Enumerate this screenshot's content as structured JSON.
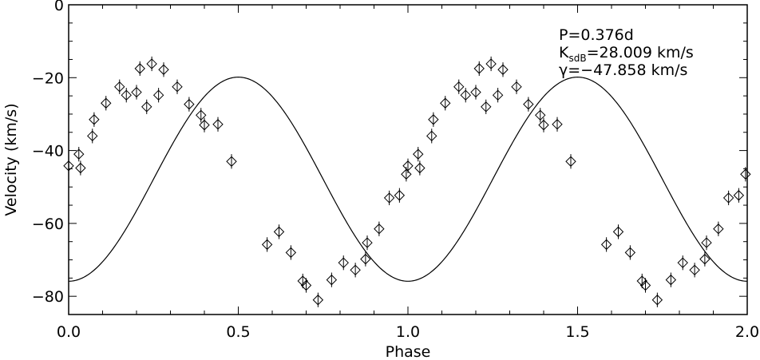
{
  "chart_data": {
    "type": "scatter",
    "xlabel": "Phase",
    "ylabel": "Velocity (km/s)",
    "xlim": [
      0.0,
      2.0
    ],
    "ylim": [
      -85,
      0
    ],
    "x_ticks": [
      0.0,
      0.5,
      1.0,
      1.5,
      2.0
    ],
    "x_tick_labels": [
      "0.0",
      "0.5",
      "1.0",
      "1.5",
      "2.0"
    ],
    "y_ticks": [
      0,
      -20,
      -40,
      -60,
      -80
    ],
    "y_tick_labels": [
      "0",
      "−20",
      "−40",
      "−60",
      "−80"
    ],
    "annotations": {
      "period": "P=0.376d",
      "k_main": "K",
      "k_sub": "sdB",
      "k_rest": "=28.009 km/s",
      "gamma": "γ=−47.858 km/s"
    },
    "fit": {
      "P_days": 0.376,
      "K": 28.009,
      "gamma": -47.858,
      "curve": "gamma - K*cos(2*pi*phase)"
    },
    "marker": "diamond-with-errorbar",
    "line_color": "#000000",
    "grid": false,
    "series": [
      {
        "points": [
          [
            0.0,
            -44.2
          ],
          [
            0.03,
            -41.0
          ],
          [
            0.035,
            -44.8
          ],
          [
            0.07,
            -36.0
          ],
          [
            0.075,
            -31.5
          ],
          [
            0.11,
            -27.0
          ],
          [
            0.15,
            -22.5
          ],
          [
            0.17,
            -24.8
          ],
          [
            0.2,
            -24.0
          ],
          [
            0.21,
            -17.5
          ],
          [
            0.23,
            -28.0
          ],
          [
            0.245,
            -16.2
          ],
          [
            0.265,
            -24.8
          ],
          [
            0.28,
            -17.8
          ],
          [
            0.32,
            -22.5
          ],
          [
            0.355,
            -27.3
          ],
          [
            0.39,
            -30.3
          ],
          [
            0.4,
            -33.0
          ],
          [
            0.44,
            -32.8
          ],
          [
            0.48,
            -43.0
          ],
          [
            0.585,
            -65.8
          ],
          [
            0.62,
            -62.3
          ],
          [
            0.655,
            -68.0
          ],
          [
            0.69,
            -75.8
          ],
          [
            0.7,
            -77.0
          ],
          [
            0.735,
            -81.0
          ],
          [
            0.775,
            -75.5
          ],
          [
            0.81,
            -70.8
          ],
          [
            0.845,
            -72.8
          ],
          [
            0.875,
            -69.8
          ],
          [
            0.88,
            -65.3
          ],
          [
            0.915,
            -61.5
          ],
          [
            0.945,
            -53.0
          ],
          [
            0.975,
            -52.3
          ],
          [
            0.995,
            -46.5
          ],
          [
            1.0,
            -44.2
          ],
          [
            1.03,
            -41.0
          ],
          [
            1.035,
            -44.8
          ],
          [
            1.07,
            -36.0
          ],
          [
            1.075,
            -31.5
          ],
          [
            1.11,
            -27.0
          ],
          [
            1.15,
            -22.5
          ],
          [
            1.17,
            -24.8
          ],
          [
            1.2,
            -24.0
          ],
          [
            1.21,
            -17.5
          ],
          [
            1.23,
            -28.0
          ],
          [
            1.245,
            -16.2
          ],
          [
            1.265,
            -24.8
          ],
          [
            1.28,
            -17.8
          ],
          [
            1.32,
            -22.5
          ],
          [
            1.355,
            -27.3
          ],
          [
            1.39,
            -30.3
          ],
          [
            1.4,
            -33.0
          ],
          [
            1.44,
            -32.8
          ],
          [
            1.48,
            -43.0
          ],
          [
            1.585,
            -65.8
          ],
          [
            1.62,
            -62.3
          ],
          [
            1.655,
            -68.0
          ],
          [
            1.69,
            -75.8
          ],
          [
            1.7,
            -77.0
          ],
          [
            1.735,
            -81.0
          ],
          [
            1.775,
            -75.5
          ],
          [
            1.81,
            -70.8
          ],
          [
            1.845,
            -72.8
          ],
          [
            1.875,
            -69.8
          ],
          [
            1.88,
            -65.3
          ],
          [
            1.915,
            -61.5
          ],
          [
            1.945,
            -53.0
          ],
          [
            1.975,
            -52.3
          ],
          [
            1.995,
            -46.5
          ]
        ],
        "errors": 2.0
      }
    ]
  }
}
